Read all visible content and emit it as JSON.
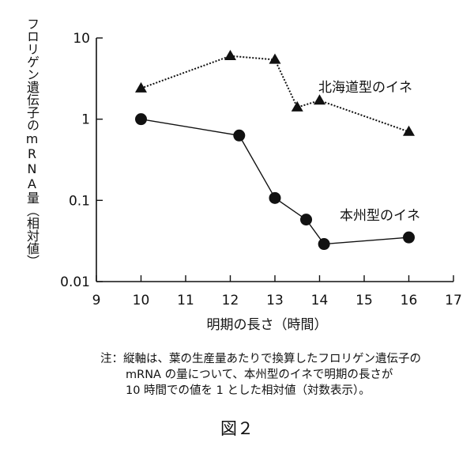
{
  "chart_data": {
    "type": "line",
    "title": "",
    "xlabel": "明期の長さ（時間）",
    "ylabel": "フロリゲン遺伝子のmRNA量（相対値）",
    "xlim": [
      9,
      17
    ],
    "ylim": [
      0.01,
      10
    ],
    "yscale": "log",
    "x_ticks": [
      "9",
      "10",
      "11",
      "12",
      "13",
      "14",
      "15",
      "16",
      "17"
    ],
    "y_ticks": [
      "10",
      "1",
      "0.1",
      "0.01"
    ],
    "grid": false,
    "series": [
      {
        "name": "北海道型のイネ",
        "marker": "triangle",
        "line_style": "dotted",
        "points": [
          {
            "x": 10,
            "y": 2.4
          },
          {
            "x": 12,
            "y": 6.0
          },
          {
            "x": 13,
            "y": 5.4
          },
          {
            "x": 13.5,
            "y": 1.4
          },
          {
            "x": 14,
            "y": 1.7
          },
          {
            "x": 16,
            "y": 0.7
          }
        ]
      },
      {
        "name": "本州型のイネ",
        "marker": "circle",
        "line_style": "solid",
        "points": [
          {
            "x": 10,
            "y": 1.0
          },
          {
            "x": 12.2,
            "y": 0.63
          },
          {
            "x": 13,
            "y": 0.107
          },
          {
            "x": 13.7,
            "y": 0.058
          },
          {
            "x": 14.1,
            "y": 0.029
          },
          {
            "x": 16,
            "y": 0.035
          }
        ]
      }
    ]
  },
  "note": {
    "line1": "注：縦軸は、葉の生産量あたりで換算したフロリゲン遺伝子の",
    "line2": "mRNA の量について、本州型のイネで明期の長さが",
    "line3": "10 時間での値を 1 とした相対値（対数表示）。"
  },
  "caption": "図２",
  "colors": {
    "ink": "#111111"
  }
}
